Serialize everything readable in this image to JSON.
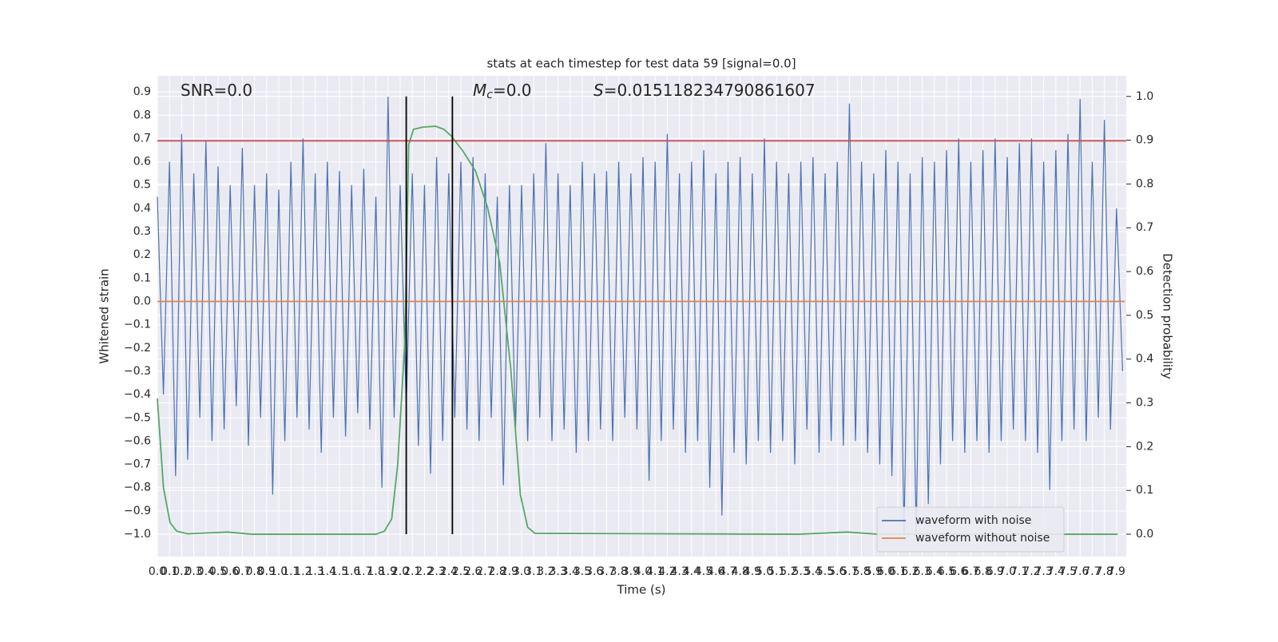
{
  "chart_data": {
    "type": "line",
    "title": "stats at each timestep for test data 59 [signal=0.0]",
    "xlabel": "Time (s)",
    "ylabel": "Whitened strain",
    "y2label": "Detection probability",
    "annotations": [
      {
        "text": "SNR=0.0"
      },
      {
        "symbol": "M",
        "subscript": "c",
        "text": "=0.0"
      },
      {
        "symbol": "S",
        "text": "=0.015118234790861607"
      }
    ],
    "x": [
      0,
      0.05,
      0.1,
      0.15,
      0.2,
      0.25,
      0.3,
      0.35,
      0.4,
      0.45,
      0.5,
      0.55,
      0.6,
      0.65,
      0.7,
      0.75,
      0.8,
      0.85,
      0.9,
      0.95,
      1,
      1.05,
      1.1,
      1.15,
      1.2,
      1.25,
      1.3,
      1.35,
      1.4,
      1.45,
      1.5,
      1.55,
      1.6,
      1.65,
      1.7,
      1.75,
      1.8,
      1.85,
      1.9,
      1.95,
      2,
      2.05,
      2.1,
      2.15,
      2.2,
      2.25,
      2.3,
      2.35,
      2.4,
      2.45,
      2.5,
      2.55,
      2.6,
      2.65,
      2.7,
      2.75,
      2.8,
      2.85,
      2.9,
      2.95,
      3,
      3.05,
      3.1,
      3.15,
      3.2,
      3.25,
      3.3,
      3.35,
      3.4,
      3.45,
      3.5,
      3.55,
      3.6,
      3.65,
      3.7,
      3.75,
      3.8,
      3.85,
      3.9,
      3.95,
      4,
      4.05,
      4.1,
      4.15,
      4.2,
      4.25,
      4.3,
      4.35,
      4.4,
      4.45,
      4.5,
      4.55,
      4.6,
      4.65,
      4.7,
      4.75,
      4.8,
      4.85,
      4.9,
      4.95,
      5,
      5.05,
      5.1,
      5.15,
      5.2,
      5.25,
      5.3,
      5.35,
      5.4,
      5.45,
      5.5,
      5.55,
      5.6,
      5.65,
      5.7,
      5.75,
      5.8,
      5.85,
      5.9,
      5.95,
      6,
      6.05,
      6.1,
      6.15,
      6.2,
      6.25,
      6.3,
      6.35,
      6.4,
      6.45,
      6.5,
      6.55,
      6.6,
      6.65,
      6.7,
      6.75,
      6.8,
      6.85,
      6.9,
      6.95,
      7,
      7.05,
      7.1,
      7.15,
      7.2,
      7.25,
      7.3,
      7.35,
      7.4,
      7.45,
      7.5,
      7.55,
      7.6,
      7.65,
      7.7,
      7.75,
      7.8,
      7.85,
      7.9,
      7.95
    ],
    "series": [
      {
        "name": "waveform with noise",
        "color": "#4c72b0",
        "axis": "y",
        "values": [
          0.45,
          -0.4,
          0.6,
          -0.75,
          0.72,
          -0.68,
          0.55,
          -0.5,
          0.69,
          -0.6,
          0.58,
          -0.55,
          0.5,
          -0.45,
          0.66,
          -0.62,
          0.5,
          -0.5,
          0.55,
          -0.83,
          0.48,
          -0.6,
          0.6,
          -0.5,
          0.7,
          -0.55,
          0.55,
          -0.65,
          0.6,
          -0.5,
          0.56,
          -0.58,
          0.5,
          -0.48,
          0.57,
          -0.55,
          0.45,
          -0.8,
          0.88,
          -0.5,
          0.5,
          -0.45,
          0.55,
          -0.62,
          0.5,
          -0.74,
          0.62,
          -0.6,
          0.55,
          -0.5,
          0.6,
          -0.55,
          0.62,
          -0.6,
          0.55,
          -0.5,
          0.45,
          -0.79,
          0.5,
          -0.55,
          0.5,
          -0.6,
          0.55,
          -0.5,
          0.68,
          -0.6,
          0.55,
          -0.55,
          0.5,
          -0.65,
          0.6,
          -0.6,
          0.55,
          -0.55,
          0.56,
          -0.6,
          0.6,
          -0.5,
          0.55,
          -0.55,
          0.62,
          -0.77,
          0.6,
          -0.6,
          0.72,
          -0.55,
          0.55,
          -0.65,
          0.6,
          -0.6,
          0.65,
          -0.8,
          0.55,
          -0.92,
          0.6,
          -0.65,
          0.62,
          -0.7,
          0.55,
          -0.6,
          0.7,
          -0.65,
          0.6,
          -0.6,
          0.55,
          -0.7,
          0.6,
          -0.55,
          0.62,
          -0.65,
          0.55,
          -0.6,
          0.6,
          -0.62,
          0.85,
          -0.6,
          0.6,
          -0.65,
          0.55,
          -0.7,
          0.65,
          -0.75,
          0.6,
          -1.0,
          0.55,
          -1.0,
          0.62,
          -0.87,
          0.6,
          -0.7,
          0.65,
          -0.6,
          0.7,
          -0.65,
          0.6,
          -0.6,
          0.65,
          -0.65,
          0.7,
          -0.6,
          0.62,
          -0.55,
          0.68,
          -0.6,
          0.7,
          -0.65,
          0.6,
          -0.81,
          0.65,
          -0.6,
          0.72,
          -0.55,
          0.87,
          -0.6,
          0.6,
          -0.5,
          0.78,
          -0.55,
          0.4,
          -0.3
        ]
      },
      {
        "name": "waveform without noise",
        "color": "#dd8452",
        "axis": "y",
        "x": [
          0,
          7.97
        ],
        "values": [
          0,
          0
        ]
      },
      {
        "color": "#55a868",
        "axis": "y2",
        "x": [
          0,
          0.05,
          0.105,
          0.16,
          0.25,
          0.58,
          0.78,
          1.8,
          1.87,
          1.93,
          1.98,
          2.04,
          2.07,
          2.11,
          2.19,
          2.29,
          2.36,
          2.42,
          2.52,
          2.62,
          2.72,
          2.82,
          2.91,
          2.99,
          3.05,
          3.11,
          5.28,
          5.68,
          5.94,
          7.91
        ],
        "values": [
          0.31,
          0.107,
          0.026,
          0.007,
          0.001,
          0.005,
          0,
          0,
          0.007,
          0.035,
          0.16,
          0.45,
          0.89,
          0.925,
          0.93,
          0.932,
          0.925,
          0.91,
          0.874,
          0.83,
          0.746,
          0.62,
          0.38,
          0.09,
          0.016,
          0.002,
          0,
          0.005,
          0,
          0
        ]
      }
    ],
    "hlines": [
      {
        "y": 0.69,
        "color": "#c44e52"
      }
    ],
    "vlines": [
      {
        "x": 2.05,
        "color": "#000000"
      },
      {
        "x": 2.43,
        "color": "#000000"
      }
    ],
    "xlim": [
      0,
      7.98
    ],
    "ylim": [
      -1.096,
      0.969
    ],
    "y2lim": [
      -0.051,
      1.047
    ],
    "xticks": [
      {
        "value": 0,
        "label": "0.0"
      },
      0.1,
      0.2,
      0.3,
      0.4,
      0.5,
      0.6,
      0.7,
      0.8,
      0.9,
      {
        "value": 1,
        "label": "1.0"
      },
      1.1,
      1.2,
      1.3,
      1.4,
      1.5,
      1.6,
      1.7,
      1.8,
      1.9,
      {
        "value": 2,
        "label": "2.0"
      },
      2.1,
      2.2,
      2.3,
      2.4,
      2.5,
      2.6,
      2.7,
      2.8,
      2.9,
      {
        "value": 3,
        "label": "3.0"
      },
      3.1,
      3.2,
      3.3,
      3.4,
      3.5,
      3.6,
      3.7,
      3.8,
      3.9,
      {
        "value": 4,
        "label": "4.0"
      },
      4.1,
      4.2,
      4.3,
      4.4,
      4.5,
      4.6,
      4.7,
      4.8,
      4.9,
      {
        "value": 5,
        "label": "5.0"
      },
      5.1,
      5.2,
      5.3,
      5.4,
      5.5,
      5.6,
      5.7,
      5.8,
      5.9,
      {
        "value": 6,
        "label": "6.0"
      },
      6.1,
      6.2,
      6.3,
      6.4,
      6.5,
      6.6,
      6.7,
      6.8,
      6.9,
      {
        "value": 7,
        "label": "7.0"
      },
      7.1,
      7.2,
      7.3,
      7.4,
      7.5,
      7.6,
      7.7,
      7.8,
      7.9
    ],
    "yticks": [
      {
        "value": -1,
        "label": "−1.0"
      },
      {
        "value": -0.9,
        "label": "−0.9"
      },
      {
        "value": -0.8,
        "label": "−0.8"
      },
      {
        "value": -0.7,
        "label": "−0.7"
      },
      {
        "value": -0.6,
        "label": "−0.6"
      },
      {
        "value": -0.5,
        "label": "−0.5"
      },
      {
        "value": -0.4,
        "label": "−0.4"
      },
      {
        "value": -0.3,
        "label": "−0.3"
      },
      {
        "value": -0.2,
        "label": "−0.2"
      },
      {
        "value": -0.1,
        "label": "−0.1"
      },
      {
        "value": 0,
        "label": "0.0"
      },
      0.1,
      0.2,
      0.3,
      0.4,
      0.5,
      0.6,
      0.7,
      0.8,
      0.9
    ],
    "y2ticks": [
      {
        "value": 0,
        "label": "0.0"
      },
      0.1,
      0.2,
      0.3,
      0.4,
      0.5,
      0.6,
      0.7,
      0.8,
      0.9,
      {
        "value": 1,
        "label": "1.0"
      }
    ],
    "grid": true,
    "legend": "lower right",
    "background": "#eaeaf2"
  }
}
